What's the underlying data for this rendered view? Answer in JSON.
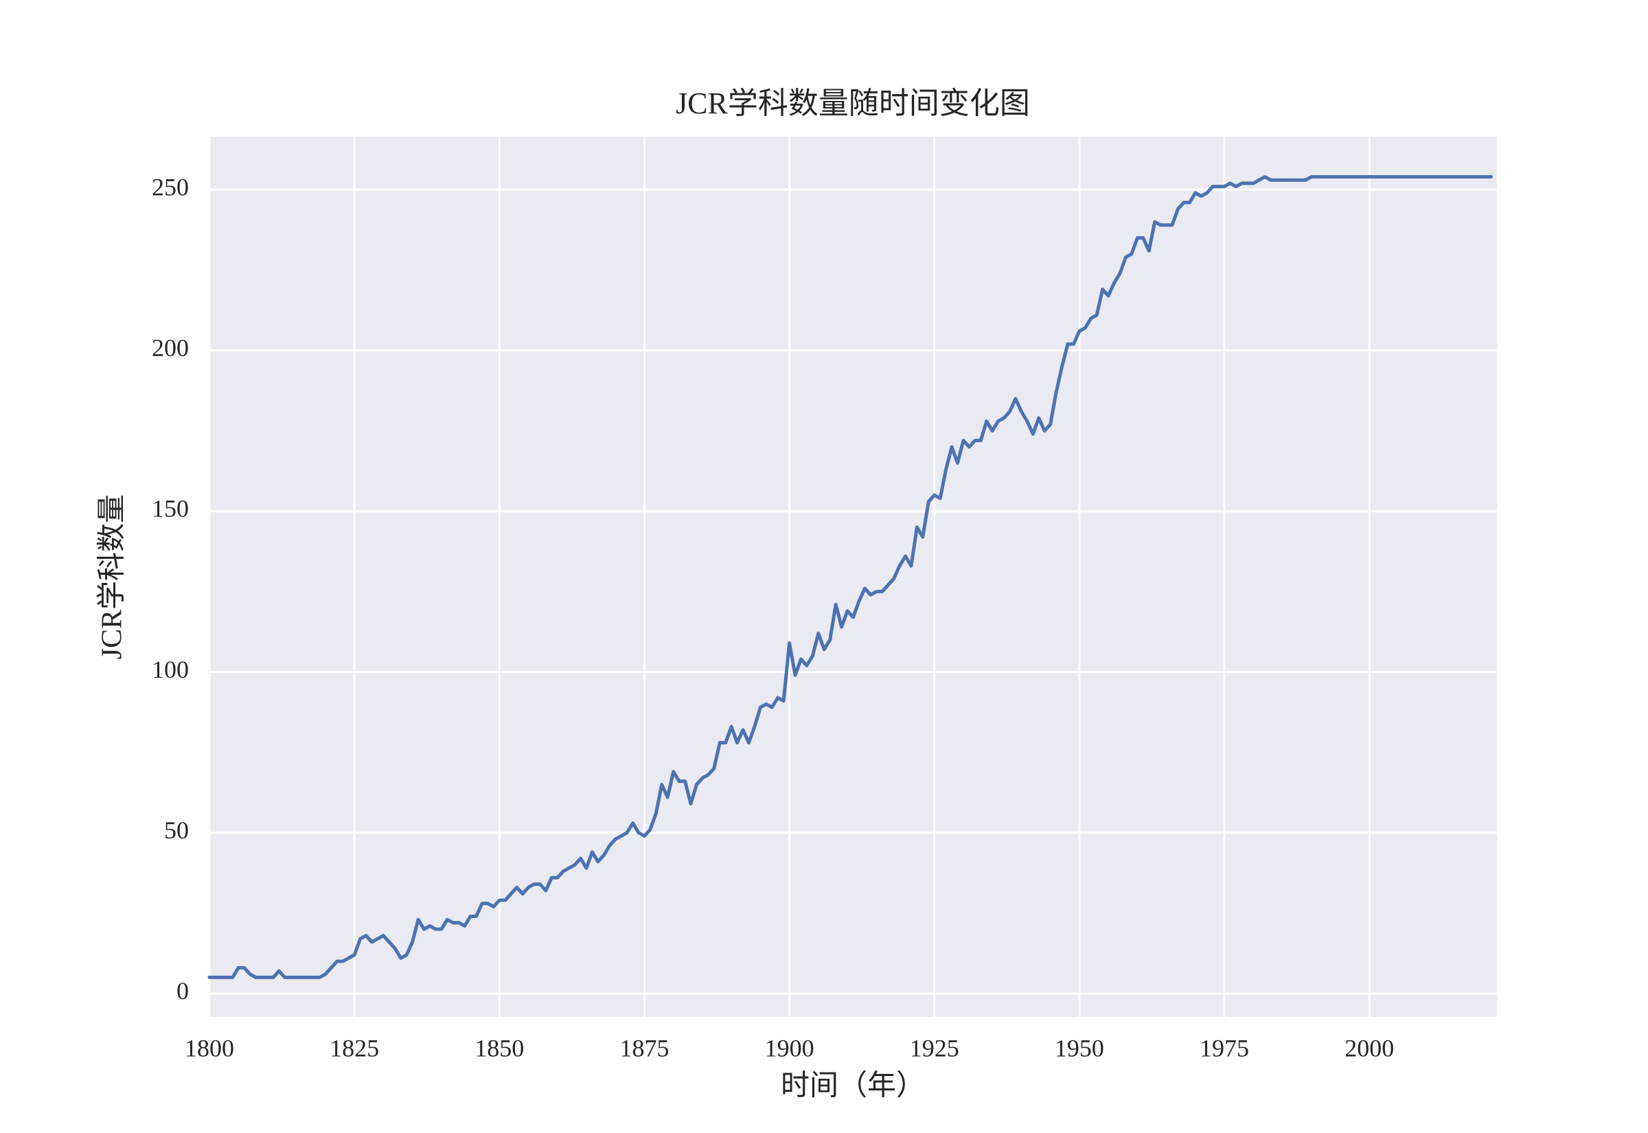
{
  "chart_data": {
    "type": "line",
    "title": "JCR学科数量随时间变化图",
    "x_label": "时间（年）",
    "y_label": "JCR学科数量",
    "color": "#4c72b0",
    "grid": true,
    "xlim": [
      1800,
      2022
    ],
    "ylim": [
      -7.3,
      266.5
    ],
    "xticks": [
      1800,
      1825,
      1850,
      1875,
      1900,
      1925,
      1950,
      1975,
      2000
    ],
    "yticks": [
      0,
      50,
      100,
      150,
      200,
      250
    ],
    "x": [
      1800,
      1801,
      1802,
      1803,
      1804,
      1805,
      1806,
      1807,
      1808,
      1809,
      1810,
      1811,
      1812,
      1813,
      1814,
      1815,
      1816,
      1817,
      1818,
      1819,
      1820,
      1821,
      1822,
      1823,
      1824,
      1825,
      1826,
      1827,
      1828,
      1829,
      1830,
      1831,
      1832,
      1833,
      1834,
      1835,
      1836,
      1837,
      1838,
      1839,
      1840,
      1841,
      1842,
      1843,
      1844,
      1845,
      1846,
      1847,
      1848,
      1849,
      1850,
      1851,
      1852,
      1853,
      1854,
      1855,
      1856,
      1857,
      1858,
      1859,
      1860,
      1861,
      1862,
      1863,
      1864,
      1865,
      1866,
      1867,
      1868,
      1869,
      1870,
      1871,
      1872,
      1873,
      1874,
      1875,
      1876,
      1877,
      1878,
      1879,
      1880,
      1881,
      1882,
      1883,
      1884,
      1885,
      1886,
      1887,
      1888,
      1889,
      1890,
      1891,
      1892,
      1893,
      1894,
      1895,
      1896,
      1897,
      1898,
      1899,
      1900,
      1901,
      1902,
      1903,
      1904,
      1905,
      1906,
      1907,
      1908,
      1909,
      1910,
      1911,
      1912,
      1913,
      1914,
      1915,
      1916,
      1917,
      1918,
      1919,
      1920,
      1921,
      1922,
      1923,
      1924,
      1925,
      1926,
      1927,
      1928,
      1929,
      1930,
      1931,
      1932,
      1933,
      1934,
      1935,
      1936,
      1937,
      1938,
      1939,
      1940,
      1941,
      1942,
      1943,
      1944,
      1945,
      1946,
      1947,
      1948,
      1949,
      1950,
      1951,
      1952,
      1953,
      1954,
      1955,
      1956,
      1957,
      1958,
      1959,
      1960,
      1961,
      1962,
      1963,
      1964,
      1965,
      1966,
      1967,
      1968,
      1969,
      1970,
      1971,
      1972,
      1973,
      1974,
      1975,
      1976,
      1977,
      1978,
      1979,
      1980,
      1981,
      1982,
      1983,
      1984,
      1985,
      1986,
      1987,
      1988,
      1989,
      1990,
      1991,
      1992,
      1993,
      1994,
      1995,
      1996,
      1997,
      1998,
      1999,
      2000,
      2001,
      2002,
      2003,
      2004,
      2005,
      2006,
      2007,
      2008,
      2009,
      2010,
      2011,
      2012,
      2013,
      2014,
      2015,
      2016,
      2017,
      2018,
      2019,
      2020,
      2021
    ],
    "values": [
      5,
      5,
      5,
      5,
      5,
      8,
      8,
      6,
      5,
      5,
      5,
      5,
      7,
      5,
      5,
      5,
      5,
      5,
      5,
      5,
      6,
      8,
      10,
      10,
      11,
      12,
      17,
      18,
      16,
      17,
      18,
      16,
      14,
      11,
      12,
      16,
      23,
      20,
      21,
      20,
      20,
      23,
      22,
      22,
      21,
      24,
      24,
      28,
      28,
      27,
      29,
      29,
      31,
      33,
      31,
      33,
      34,
      34,
      32,
      36,
      36,
      38,
      39,
      40,
      42,
      39,
      44,
      41,
      43,
      46,
      48,
      49,
      50,
      53,
      50,
      49,
      51,
      56,
      65,
      61,
      69,
      66,
      66,
      59,
      65,
      67,
      68,
      70,
      78,
      78,
      83,
      78,
      82,
      78,
      83,
      89,
      90,
      89,
      92,
      91,
      109,
      99,
      104,
      102,
      105,
      112,
      107,
      110,
      121,
      114,
      119,
      117,
      122,
      126,
      124,
      125,
      125,
      127,
      129,
      133,
      136,
      133,
      145,
      142,
      153,
      155,
      154,
      163,
      170,
      165,
      172,
      170,
      172,
      172,
      178,
      175,
      178,
      179,
      181,
      185,
      181,
      178,
      174,
      179,
      175,
      177,
      187,
      195,
      202,
      202,
      206,
      207,
      210,
      211,
      219,
      217,
      221,
      224,
      229,
      230,
      235,
      235,
      231,
      240,
      239,
      239,
      239,
      244,
      246,
      246,
      249,
      248,
      249,
      251,
      251,
      251,
      252,
      251,
      252,
      252,
      252,
      253,
      254,
      253,
      253,
      253,
      253,
      253,
      253,
      253,
      254,
      254,
      254,
      254,
      254,
      254,
      254,
      254,
      254,
      254,
      254,
      254,
      254,
      254,
      254,
      254,
      254,
      254,
      254,
      254,
      254,
      254,
      254,
      254,
      254,
      254,
      254,
      254,
      254,
      254,
      254,
      254
    ]
  }
}
